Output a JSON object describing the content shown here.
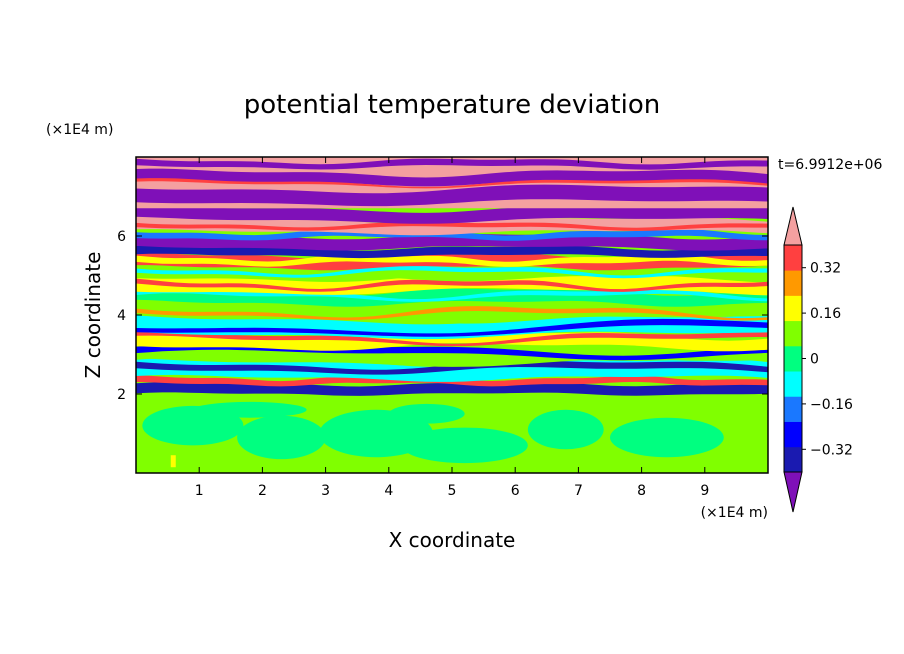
{
  "chart_data": {
    "type": "heatmap",
    "title": "potential temperature deviation",
    "xlabel": "X coordinate",
    "ylabel": "Z coordinate",
    "x_unit": "(×1E4 m)",
    "y_unit": "(×1E4 m)",
    "time_label": "t=6.9912e+06",
    "xlim": [
      0,
      10
    ],
    "ylim": [
      0,
      8
    ],
    "x_ticks": [
      1,
      2,
      3,
      4,
      5,
      6,
      7,
      8,
      9
    ],
    "y_ticks": [
      2,
      4,
      6
    ],
    "colorbar": {
      "levels": [
        -0.4,
        -0.32,
        -0.24,
        -0.16,
        -0.08,
        0,
        0.08,
        0.16,
        0.24,
        0.32,
        0.4
      ],
      "labels": [
        "0.32",
        "0.16",
        "0",
        "−0.16",
        "−0.32"
      ],
      "label_values": [
        0.32,
        0.16,
        0,
        -0.16,
        -0.32
      ],
      "colors": [
        "#7f10b8",
        "#1a1ab0",
        "#0000ff",
        "#1a78ff",
        "#00ffff",
        "#00ff80",
        "#80ff00",
        "#ffff00",
        "#ff9900",
        "#ff4040",
        "#f4a0a0"
      ],
      "extend": "both"
    },
    "regions": [
      {
        "z": [
          0.0,
          2.0
        ],
        "class": "green"
      },
      {
        "z": [
          2.0,
          2.25
        ],
        "class": "blue"
      },
      {
        "z": [
          2.25,
          5.5
        ],
        "class": "mixed"
      },
      {
        "z": [
          5.5,
          6.7
        ],
        "class": "purple"
      },
      {
        "z": [
          6.7,
          8.0
        ],
        "class": "pink"
      }
    ]
  }
}
